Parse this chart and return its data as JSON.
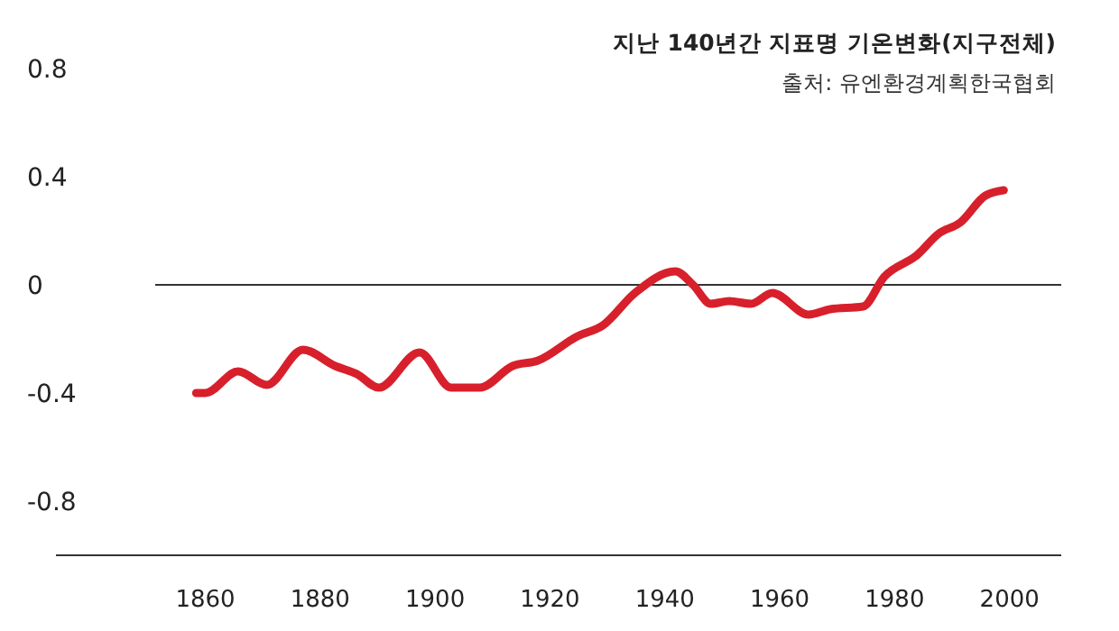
{
  "chart_data": {
    "type": "line",
    "title": "지난 140년간 지표명 기온변화(지구전체)",
    "annotations": [
      "출처: 유엔환경계획한국협회"
    ],
    "x": [
      1858.4,
      1860,
      1865.7,
      1870.7,
      1877,
      1882.6,
      1886.4,
      1890.2,
      1897.3,
      1902.8,
      1907.8,
      1913.5,
      1917.9,
      1924.8,
      1929.2,
      1934.8,
      1941.8,
      1944.9,
      1948,
      1951.2,
      1955,
      1958.7,
      1965,
      1968.8,
      1974.5,
      1978.2,
      1983.9,
      1987.7,
      1991.4,
      1995.8,
      1999
    ],
    "series": [
      {
        "color": "#d7202b",
        "values": [
          -0.4,
          -0.4,
          -0.32,
          -0.37,
          -0.24,
          -0.3,
          -0.33,
          -0.38,
          -0.25,
          -0.38,
          -0.38,
          -0.3,
          -0.28,
          -0.19,
          -0.15,
          -0.03,
          0.05,
          0,
          -0.07,
          -0.06,
          -0.07,
          -0.03,
          -0.11,
          -0.09,
          -0.08,
          0.03,
          0.11,
          0.19,
          0.23,
          0.33,
          0.35
        ]
      }
    ],
    "xlim": [
      1834,
      2009
    ],
    "ylim": [
      -1,
      0.8
    ],
    "xticks": [
      1860,
      1880,
      1900,
      1920,
      1940,
      1960,
      1980,
      2000
    ],
    "yticks": [
      -0.8,
      -0.4,
      0,
      0.4,
      0.8
    ],
    "ref_lines": [
      {
        "axis": "y",
        "value": 0,
        "color": "#333333"
      }
    ],
    "grid": false,
    "marker": "none",
    "line_style": "solid"
  }
}
